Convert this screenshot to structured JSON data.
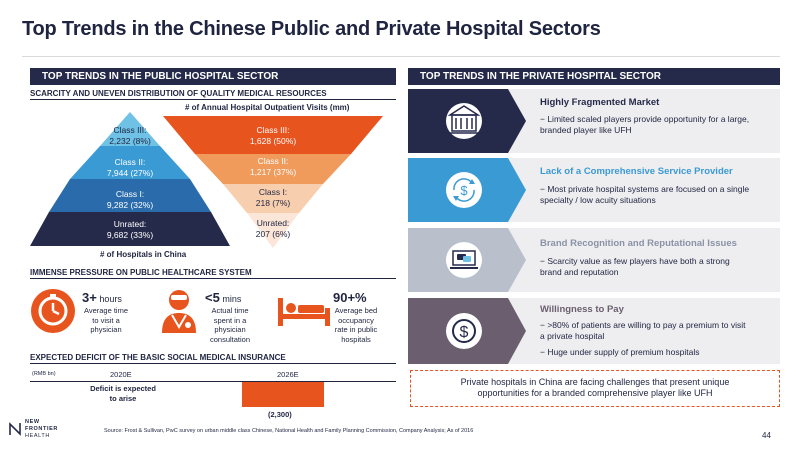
{
  "title": "Top Trends in the Chinese Public and Private Hospital Sectors",
  "left": {
    "header": "TOP TRENDS IN THE PUBLIC HOSPITAL SECTOR",
    "scarcity_title": "SCARCITY AND UNEVEN DISTRIBUTION OF QUALITY MEDICAL RESOURCES",
    "visits_label": "# of Annual Hospital Outpatient Visits (mm)",
    "hospitals_label": "# of Hospitals in China",
    "pyramid": [
      {
        "name": "Class III:",
        "value": "2,232 (8%)"
      },
      {
        "name": "Class II:",
        "value": "7,944 (27%)"
      },
      {
        "name": "Class I:",
        "value": "9,282 (32%)"
      },
      {
        "name": "Unrated:",
        "value": "9,682 (33%)"
      }
    ],
    "inverted": [
      {
        "name": "Class III:",
        "value": "1,628 (50%)"
      },
      {
        "name": "Class II:",
        "value": "1,217 (37%)"
      },
      {
        "name": "Class I:",
        "value": "218 (7%)"
      },
      {
        "name": "Unrated:",
        "value": "207 (6%)"
      }
    ],
    "pressure_title": "IMMENSE PRESSURE ON PUBLIC HEALTHCARE SYSTEM",
    "stats": [
      {
        "big": "3+",
        "unit": " hours",
        "desc": [
          "Average time",
          "to visit a",
          "physician"
        ]
      },
      {
        "big": "<5",
        "unit": " mins",
        "desc": [
          "Actual time",
          "spent in a",
          "physician",
          "consultation"
        ]
      },
      {
        "big": "90+%",
        "unit": "",
        "desc": [
          "Average bed",
          "occupancy",
          "rate in public",
          "hospitals"
        ]
      }
    ],
    "deficit_title": "EXPECTED DEFICIT OF THE BASIC SOCIAL MEDICAL INSURANCE",
    "deficit_unit": "(RMB bn)",
    "deficit_2020": "2020E",
    "deficit_2026": "2026E",
    "deficit_note": [
      "Deficit is expected",
      "to arise"
    ],
    "deficit_value": "(2,300)"
  },
  "right": {
    "header": "TOP TRENDS IN THE PRIVATE HOSPITAL SECTOR",
    "cards": [
      {
        "title": "Highly Fragmented Market",
        "bullets": [
          "−  Limited scaled players provide opportunity for a large,",
          "    branded player like UFH"
        ]
      },
      {
        "title": "Lack of a Comprehensive Service Provider",
        "bullets": [
          "−  Most private hospital systems are focused on a single",
          "    specialty / low acuity situations"
        ]
      },
      {
        "title": "Brand Recognition and Reputational Issues",
        "bullets": [
          "−  Scarcity value as few players have both a strong",
          "    brand and reputation"
        ]
      },
      {
        "title": "Willingness to Pay",
        "bullets": [
          "−  >80% of patients are willing to pay a premium to visit",
          "    a private hospital",
          "−  Huge under supply of premium hospitals"
        ]
      }
    ],
    "callout": [
      "Private hospitals in China are facing challenges that present unique",
      "opportunities for a branded comprehensive player like UFH"
    ]
  },
  "footer": {
    "logo_lines": [
      "NEW",
      "FRONTIER",
      "HEALTH"
    ],
    "source": "Source: Frost & Sullivan, PwC survey on urban middle class Chinese, National Health and Family Planning Commission, Company Analysis; As of 2016",
    "page": "44"
  },
  "colors": {
    "navy": "#252a4a",
    "orange": "#e8541e",
    "light_blue": "#6fc2e6",
    "mid_blue": "#3a9ad4",
    "dark_blue": "#2a6cab"
  }
}
